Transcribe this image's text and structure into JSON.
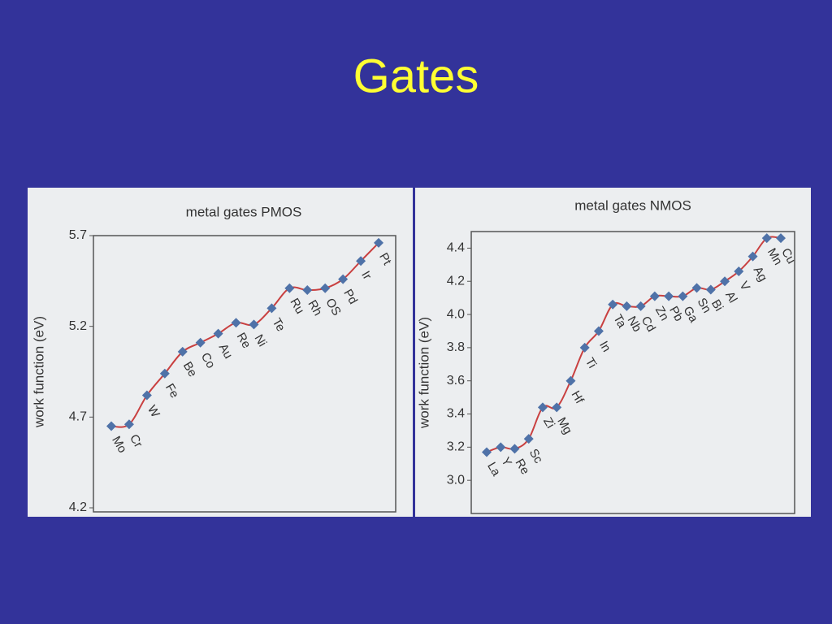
{
  "title": "Gates",
  "chart_data": [
    {
      "type": "line",
      "title": "metal gates PMOS",
      "y_label": "work function (eV)",
      "categories": [
        "Mo",
        "Cr",
        "W",
        "Fe",
        "Be",
        "Co",
        "Au",
        "Re",
        "Ni",
        "Te",
        "Ru",
        "Rh",
        "OS",
        "Pd",
        "Ir",
        "Pt"
      ],
      "values": [
        4.65,
        4.66,
        4.82,
        4.94,
        5.06,
        5.11,
        5.16,
        5.22,
        5.21,
        5.3,
        5.41,
        5.4,
        5.41,
        5.46,
        5.56,
        5.66
      ],
      "marker_color": "#4f72a8",
      "curve_color": "#c94040",
      "ylim": [
        4.2,
        5.7
      ],
      "yticks": [
        4.2,
        4.7,
        5.2,
        5.7
      ]
    },
    {
      "type": "line",
      "title": "metal gates NMOS",
      "y_label": "work function (eV)",
      "categories": [
        "La",
        "Y",
        "Re",
        "Sc",
        "Zi",
        "Mg",
        "Hf",
        "Ti",
        "In",
        "Ta",
        "Nb",
        "Cd",
        "Zn",
        "Pb",
        "Ga",
        "Sn",
        "Bi",
        "Al",
        "V",
        "Ag",
        "Mn",
        "Cu"
      ],
      "values": [
        3.17,
        3.2,
        3.19,
        3.25,
        3.44,
        3.44,
        3.6,
        3.8,
        3.9,
        4.06,
        4.05,
        4.05,
        4.11,
        4.11,
        4.11,
        4.16,
        4.15,
        4.2,
        4.26,
        4.35,
        4.46,
        4.46
      ],
      "marker_color": "#4f72a8",
      "curve_color": "#c94040",
      "ylim": [
        2.8,
        4.5
      ],
      "yticks": [
        {
          "value": 3.0,
          "label": "3.0"
        },
        3.2,
        3.4,
        3.6,
        3.8,
        {
          "value": 4.0,
          "label": "4.0"
        },
        4.2,
        4.4
      ]
    }
  ]
}
